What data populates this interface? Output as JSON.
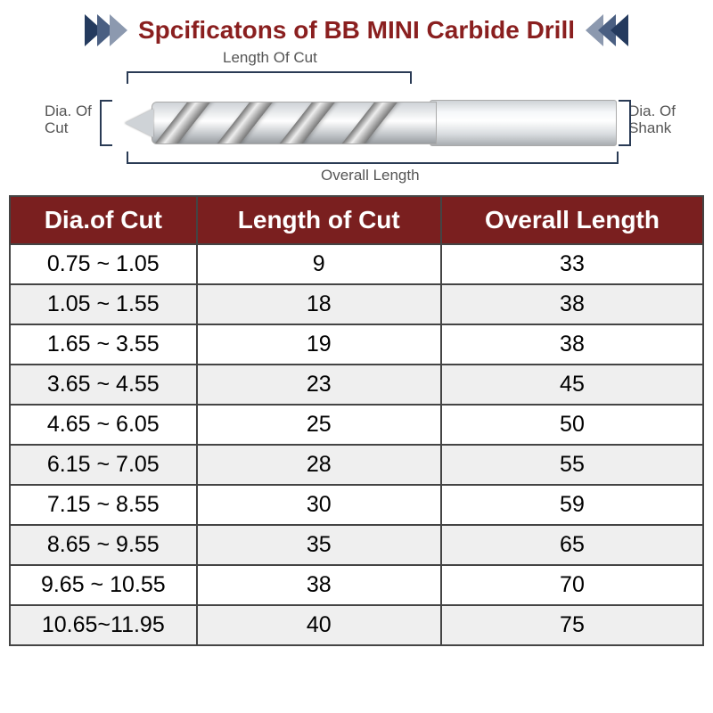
{
  "colors": {
    "title": "#8a1f1f",
    "chevron_dark": "#243a5e",
    "chevron_mid": "#4a5f82",
    "chevron_light": "#8c99af",
    "header_bg": "#7a1f1f",
    "border": "#444444",
    "row_alt": "#efefef",
    "dim_line": "#2a3b55"
  },
  "title": "Spcificatons of BB MINI Carbide Drill",
  "diagram": {
    "labels": {
      "length_of_cut": "Length Of Cut",
      "dia_of_cut": "Dia. Of\nCut",
      "dia_of_shank": "Dia. Of\nShank",
      "overall_length": "Overall Length"
    }
  },
  "table": {
    "columns": [
      "Dia.of Cut",
      "Length of Cut",
      "Overall Length"
    ],
    "col_widths": [
      "33%",
      "33%",
      "34%"
    ],
    "header_fontsize": 28,
    "cell_fontsize": 25,
    "rows": [
      [
        "0.75 ~ 1.05",
        "9",
        "33"
      ],
      [
        "1.05 ~ 1.55",
        "18",
        "38"
      ],
      [
        "1.65 ~ 3.55",
        "19",
        "38"
      ],
      [
        "3.65 ~ 4.55",
        "23",
        "45"
      ],
      [
        "4.65 ~ 6.05",
        "25",
        "50"
      ],
      [
        "6.15 ~ 7.05",
        "28",
        "55"
      ],
      [
        "7.15 ~ 8.55",
        "30",
        "59"
      ],
      [
        "8.65 ~ 9.55",
        "35",
        "65"
      ],
      [
        "9.65 ~ 10.55",
        "38",
        "70"
      ],
      [
        "10.65~11.95",
        "40",
        "75"
      ]
    ]
  }
}
